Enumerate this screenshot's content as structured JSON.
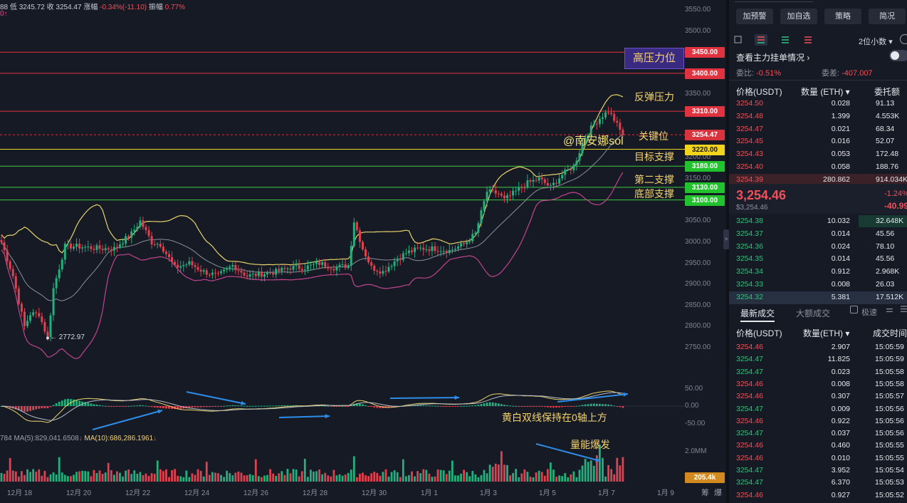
{
  "ohlc": {
    "prefix": "88",
    "low_label": "低",
    "low": "3245.72",
    "close_label": "收",
    "close": "3254.47",
    "change_label": "涨幅",
    "change": "-0.34%(-11.10)",
    "amp_label": "振幅",
    "amp": "0.77%",
    "sub": "0↑"
  },
  "price_axis": [
    "3550.00",
    "3500.00",
    "3350.00",
    "3250.00",
    "3200.00",
    "3150.00",
    "3050.00",
    "3000.00",
    "2950.00",
    "2900.00",
    "2850.00",
    "2800.00",
    "2750.00"
  ],
  "price_tags": [
    {
      "label": "3450.00",
      "price": 3450,
      "bg": "#e0323f",
      "fg": "#ffffff"
    },
    {
      "label": "3400.00",
      "price": 3400,
      "bg": "#e0323f",
      "fg": "#ffffff"
    },
    {
      "label": "3310.00",
      "price": 3310,
      "bg": "#e0323f",
      "fg": "#ffffff"
    },
    {
      "label": "3254.47",
      "price": 3254.47,
      "bg": "#d8343e",
      "fg": "#ffffff"
    },
    {
      "label": "3220.00",
      "price": 3220,
      "bg": "#f2d41d",
      "fg": "#1a1a1a"
    },
    {
      "label": "3180.00",
      "price": 3180,
      "bg": "#22c22e",
      "fg": "#ffffff"
    },
    {
      "label": "3130.00",
      "price": 3130,
      "bg": "#22c22e",
      "fg": "#ffffff"
    },
    {
      "label": "3100.00",
      "price": 3100,
      "bg": "#22c22e",
      "fg": "#ffffff"
    }
  ],
  "annotations": {
    "high_pressure": "高压力位",
    "rebound_pressure": "反弹压力",
    "key_level": "关键位",
    "watermark": "@南安娜sol",
    "target_support": "目标支撑",
    "second_support": "第二支撑",
    "bottom_support": "底部支撑",
    "macd_note": "黄白双线保持在0轴上方",
    "volume_note": "量能爆发",
    "low_marker": "← 2772.97"
  },
  "macd_axis": [
    "50.00",
    "0.00",
    "-50.00"
  ],
  "volume_axis": [
    "2.0MM"
  ],
  "volume_tag": "205.4k",
  "volume_legend": {
    "left": "784",
    "ma5": "MA(5):829,041.6508",
    "ma5_arrow": "↓",
    "ma10": "MA(10):686,286.1961",
    "ma10_arrow": "↓"
  },
  "dates": [
    "12月 18",
    "12月 20",
    "12月 22",
    "12月 24",
    "12月 26",
    "12月 28",
    "12月 30",
    "1月 1",
    "1月 3",
    "1月 5",
    "1月 7",
    "1月 9"
  ],
  "corner": [
    "筹",
    "爆"
  ],
  "colors": {
    "up": "#22b07d",
    "down": "#e0414f",
    "boll_upper": "#e6d36a",
    "boll_lower": "#c2458f",
    "boll_mid": "#8a8f9c"
  },
  "chart_data": {
    "type": "candlestick",
    "ylim": [
      2740,
      3560
    ],
    "levels": [
      {
        "price": 3450,
        "color": "#e0323f"
      },
      {
        "price": 3400,
        "color": "#e0323f"
      },
      {
        "price": 3310,
        "color": "#e0323f"
      },
      {
        "price": 3220,
        "color": "#e8d325"
      },
      {
        "price": 3180,
        "color": "#3cc940"
      },
      {
        "price": 3130,
        "color": "#3cc940"
      },
      {
        "price": 3100,
        "color": "#3cc940"
      }
    ],
    "last_price": 3254.47,
    "anchors": [
      {
        "i": 0,
        "p": 3000
      },
      {
        "i": 4,
        "p": 2920
      },
      {
        "i": 8,
        "p": 2800
      },
      {
        "i": 10,
        "p": 2830
      },
      {
        "i": 13,
        "p": 2830
      },
      {
        "i": 16,
        "p": 2773
      },
      {
        "i": 18,
        "p": 2890
      },
      {
        "i": 22,
        "p": 2990
      },
      {
        "i": 26,
        "p": 2990
      },
      {
        "i": 34,
        "p": 2985
      },
      {
        "i": 39,
        "p": 2985
      },
      {
        "i": 45,
        "p": 3020
      },
      {
        "i": 48,
        "p": 3050
      },
      {
        "i": 52,
        "p": 3000
      },
      {
        "i": 55,
        "p": 2995
      },
      {
        "i": 60,
        "p": 2940
      },
      {
        "i": 65,
        "p": 2950
      },
      {
        "i": 70,
        "p": 2930
      },
      {
        "i": 75,
        "p": 2920
      },
      {
        "i": 80,
        "p": 2945
      },
      {
        "i": 85,
        "p": 2920
      },
      {
        "i": 90,
        "p": 2925
      },
      {
        "i": 95,
        "p": 2930
      },
      {
        "i": 100,
        "p": 2940
      },
      {
        "i": 105,
        "p": 2940
      },
      {
        "i": 110,
        "p": 2950
      },
      {
        "i": 115,
        "p": 2940
      },
      {
        "i": 120,
        "p": 2945
      },
      {
        "i": 122,
        "p": 3050
      },
      {
        "i": 125,
        "p": 2985
      },
      {
        "i": 128,
        "p": 2940
      },
      {
        "i": 132,
        "p": 2930
      },
      {
        "i": 136,
        "p": 2955
      },
      {
        "i": 140,
        "p": 2975
      },
      {
        "i": 145,
        "p": 2985
      },
      {
        "i": 150,
        "p": 2985
      },
      {
        "i": 155,
        "p": 2980
      },
      {
        "i": 160,
        "p": 2995
      },
      {
        "i": 164,
        "p": 3020
      },
      {
        "i": 168,
        "p": 3120
      },
      {
        "i": 172,
        "p": 3115
      },
      {
        "i": 174,
        "p": 3100
      },
      {
        "i": 178,
        "p": 3120
      },
      {
        "i": 182,
        "p": 3140
      },
      {
        "i": 186,
        "p": 3150
      },
      {
        "i": 190,
        "p": 3130
      },
      {
        "i": 194,
        "p": 3160
      },
      {
        "i": 198,
        "p": 3180
      },
      {
        "i": 202,
        "p": 3250
      },
      {
        "i": 205,
        "p": 3280
      },
      {
        "i": 208,
        "p": 3300
      },
      {
        "i": 210,
        "p": 3310
      },
      {
        "i": 212,
        "p": 3290
      },
      {
        "i": 214,
        "p": 3265
      },
      {
        "i": 215,
        "p": 3254.47
      }
    ],
    "low_point": {
      "i": 16,
      "price": 2772.97
    }
  },
  "rp": {
    "buttons": [
      "加预警",
      "加自选",
      "策略",
      "简况"
    ],
    "decimals": "2位小数",
    "main_order": "查看主力挂单情况",
    "ratio_label": "委比:",
    "ratio": "-0.51%",
    "diff_label": "委差:",
    "diff": "-407.007",
    "book_head": [
      "价格(USDT)",
      "数量 (ETH)",
      "委托额"
    ],
    "asks": [
      {
        "p": "3254.50",
        "q": "0.028",
        "t": "91.13"
      },
      {
        "p": "3254.48",
        "q": "1.399",
        "t": "4.553K"
      },
      {
        "p": "3254.47",
        "q": "0.021",
        "t": "68.34"
      },
      {
        "p": "3254.45",
        "q": "0.016",
        "t": "52.07"
      },
      {
        "p": "3254.43",
        "q": "0.053",
        "t": "172.48"
      },
      {
        "p": "3254.40",
        "q": "0.058",
        "t": "188.76"
      },
      {
        "p": "3254.39",
        "q": "280.862",
        "t": "914.034K"
      }
    ],
    "last": "3,254.46",
    "last_sub": "$3,254.46",
    "chg_pct": "-1.24%",
    "chg_abs": "-40.99",
    "bids": [
      {
        "p": "3254.38",
        "q": "10.032",
        "t": "32.648K"
      },
      {
        "p": "3254.37",
        "q": "0.014",
        "t": "45.56"
      },
      {
        "p": "3254.36",
        "q": "0.024",
        "t": "78.10"
      },
      {
        "p": "3254.35",
        "q": "0.014",
        "t": "45.56"
      },
      {
        "p": "3254.34",
        "q": "0.912",
        "t": "2.968K"
      },
      {
        "p": "3254.33",
        "q": "0.008",
        "t": "26.03"
      },
      {
        "p": "3254.32",
        "q": "5.381",
        "t": "17.512K"
      }
    ],
    "tab_latest": "最新成交",
    "tab_big": "大额成交",
    "fast": "极速",
    "trade_head": [
      "价格(USDT)",
      "数量(ETH)",
      "成交时间"
    ],
    "trades": [
      {
        "p": "3254.46",
        "q": "2.907",
        "t": "15:05:59",
        "c": "red"
      },
      {
        "p": "3254.47",
        "q": "11.825",
        "t": "15:05:59",
        "c": "green"
      },
      {
        "p": "3254.47",
        "q": "0.023",
        "t": "15:05:58",
        "c": "green"
      },
      {
        "p": "3254.46",
        "q": "0.008",
        "t": "15:05:58",
        "c": "red"
      },
      {
        "p": "3254.46",
        "q": "0.307",
        "t": "15:05:57",
        "c": "red"
      },
      {
        "p": "3254.47",
        "q": "0.009",
        "t": "15:05:56",
        "c": "green"
      },
      {
        "p": "3254.46",
        "q": "0.922",
        "t": "15:05:56",
        "c": "red"
      },
      {
        "p": "3254.47",
        "q": "0.037",
        "t": "15:05:56",
        "c": "green"
      },
      {
        "p": "3254.46",
        "q": "0.460",
        "t": "15:05:55",
        "c": "red"
      },
      {
        "p": "3254.46",
        "q": "0.010",
        "t": "15:05:55",
        "c": "red"
      },
      {
        "p": "3254.47",
        "q": "3.952",
        "t": "15:05:54",
        "c": "green"
      },
      {
        "p": "3254.47",
        "q": "6.370",
        "t": "15:05:53",
        "c": "green"
      },
      {
        "p": "3254.46",
        "q": "0.927",
        "t": "15:05:52",
        "c": "red"
      }
    ]
  }
}
